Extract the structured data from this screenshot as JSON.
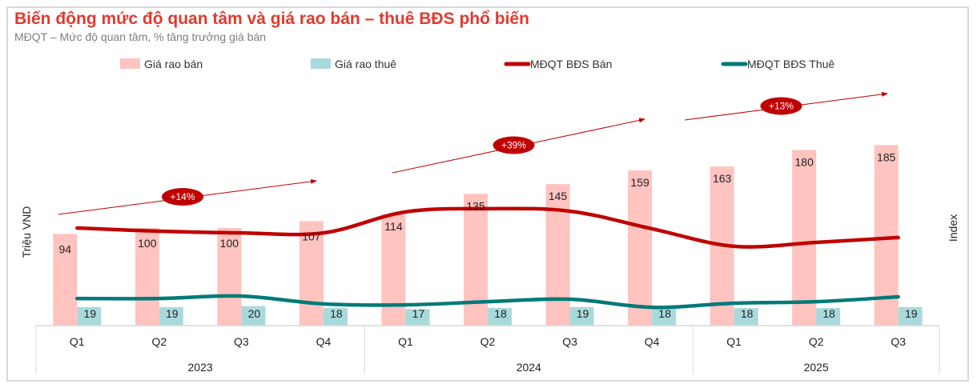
{
  "chart_data": {
    "type": "bar",
    "title": "Biến động mức độ quan tâm và giá rao bán – thuê BĐS phổ biến",
    "subtitle": "MĐQT – Mức độ quan tâm, % tăng trưởng giá bán",
    "ylabel": "Triệu VND",
    "y2label": "Index",
    "ylim": [
      0,
      250
    ],
    "y2lim": [
      0,
      100
    ],
    "legend_position": "top",
    "categories": [
      "Q1",
      "Q2",
      "Q3",
      "Q4",
      "Q1",
      "Q2",
      "Q3",
      "Q4",
      "Q1",
      "Q2",
      "Q3"
    ],
    "years": [
      {
        "label": "2023",
        "span": 4
      },
      {
        "label": "2024",
        "span": 4
      },
      {
        "label": "2025",
        "span": 3
      }
    ],
    "series": [
      {
        "name": "Giá rao bán",
        "kind": "bar",
        "color": "#ffc3c0",
        "values": [
          94,
          100,
          100,
          107,
          114,
          135,
          145,
          159,
          163,
          180,
          185
        ]
      },
      {
        "name": "Giá rao thuê",
        "kind": "bar",
        "color": "#a8dadc",
        "values": [
          19,
          19,
          20,
          18,
          17,
          18,
          19,
          18,
          18,
          18,
          19
        ]
      },
      {
        "name": "MĐQT BĐS Bán",
        "kind": "line",
        "axis": "y2",
        "color": "#c00000",
        "values": [
          40,
          38.7,
          38,
          38,
          46.6,
          47.9,
          46.9,
          39.7,
          32.5,
          34.1,
          36.1
        ]
      },
      {
        "name": "MĐQT BĐS Thuê",
        "kind": "line",
        "axis": "y2",
        "color": "#007a78",
        "values": [
          11.1,
          11.1,
          12.1,
          8.9,
          8.5,
          9.8,
          10.8,
          7.5,
          9.2,
          9.8,
          11.8
        ]
      }
    ],
    "annotations": [
      {
        "label": "+14%",
        "from": 0,
        "to": 3
      },
      {
        "label": "+39%",
        "from": 4,
        "to": 7
      },
      {
        "label": "+13%",
        "from": 8,
        "to": 10
      }
    ]
  }
}
